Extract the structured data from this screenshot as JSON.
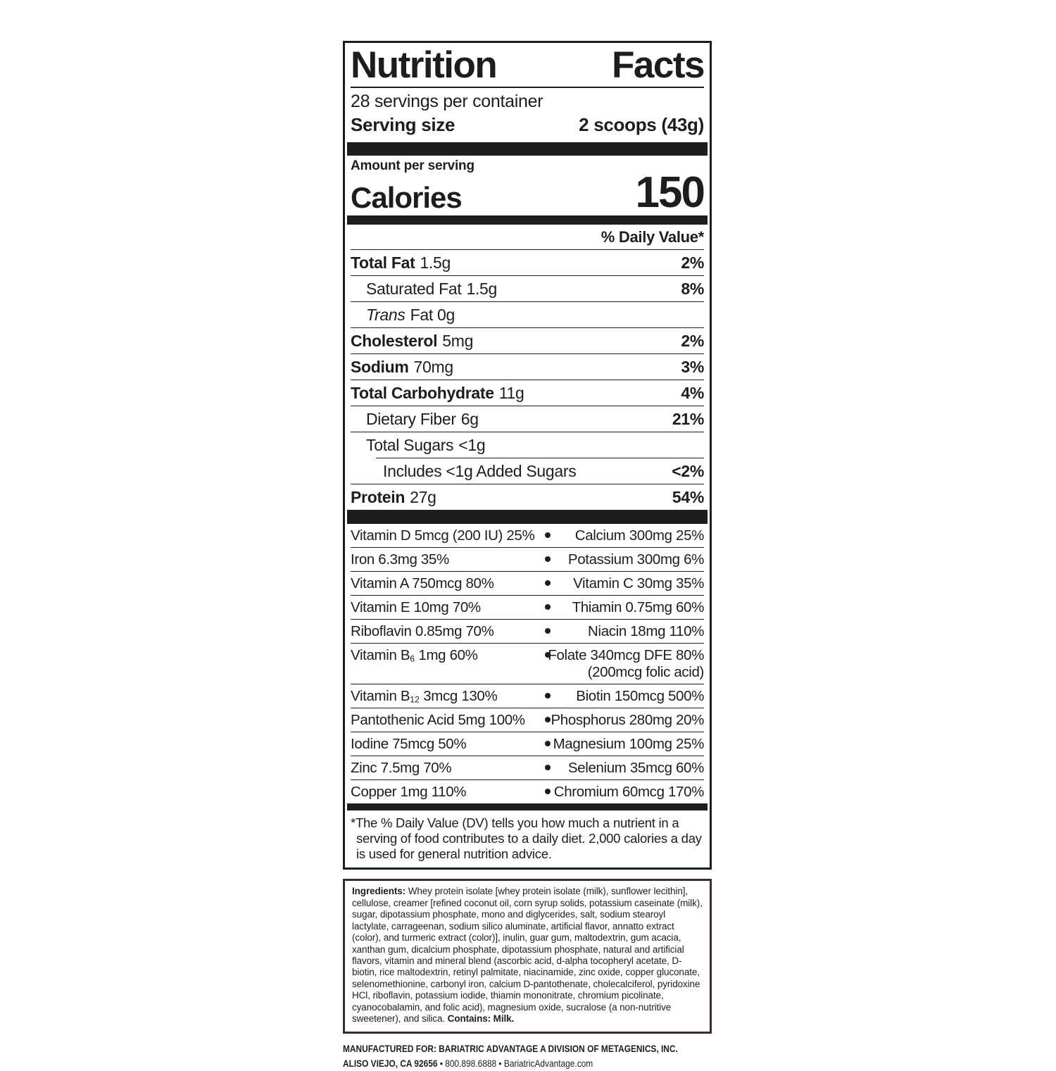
{
  "panel": {
    "title_word1": "Nutrition",
    "title_word2": "Facts",
    "servings_per_container": "28 servings per container",
    "serving_size_label": "Serving size",
    "serving_size_value": "2 scoops (43g)",
    "amount_per_serving": "Amount per serving",
    "calories_label": "Calories",
    "calories_value": "150",
    "daily_value_header": "% Daily Value*",
    "nutrients": [
      {
        "name": "Total Fat",
        "amount": "1.5g",
        "dv": "2%"
      },
      {
        "name": "Saturated Fat",
        "amount": "1.5g",
        "dv": "8%"
      },
      {
        "name": "Trans",
        "amount": "Fat 0g",
        "dv": ""
      },
      {
        "name": "Cholesterol",
        "amount": "5mg",
        "dv": "2%"
      },
      {
        "name": "Sodium",
        "amount": "70mg",
        "dv": "3%"
      },
      {
        "name": "Total Carbohydrate",
        "amount": "11g",
        "dv": "4%"
      },
      {
        "name": "Dietary Fiber",
        "amount": "6g",
        "dv": "21%"
      },
      {
        "name": "Total Sugars",
        "amount": "<1g",
        "dv": ""
      },
      {
        "name": "Includes <1g Added Sugars",
        "amount": "",
        "dv": "<2%"
      },
      {
        "name": "Protein",
        "amount": "27g",
        "dv": "54%"
      }
    ],
    "micronutrients": [
      {
        "left": "Vitamin D 5mcg (200 IU) 25%",
        "right": "Calcium 300mg 25%"
      },
      {
        "left": "Iron 6.3mg 35%",
        "right": "Potassium 300mg 6%"
      },
      {
        "left": "Vitamin A 750mcg 80%",
        "right": "Vitamin C 30mg 35%"
      },
      {
        "left": "Vitamin E 10mg 70%",
        "right": "Thiamin 0.75mg 60%"
      },
      {
        "left": "Riboflavin 0.85mg 70%",
        "right": "Niacin 18mg 110%"
      },
      {
        "left_base": "Vitamin B",
        "left_sub": "6",
        "left_rest": " 1mg 60%",
        "right": "Folate 340mcg DFE 80%",
        "right2": "(200mcg folic acid)"
      },
      {
        "left_base": "Vitamin B",
        "left_sub": "12",
        "left_rest": " 3mcg 130%",
        "right": "Biotin 150mcg 500%"
      },
      {
        "left": "Pantothenic Acid 5mg 100%",
        "right": "Phosphorus 280mg 20%"
      },
      {
        "left": "Iodine 75mcg 50%",
        "right": "Magnesium 100mg 25%"
      },
      {
        "left": "Zinc 7.5mg 70%",
        "right": "Selenium 35mcg 60%"
      },
      {
        "left": "Copper 1mg 110%",
        "right": "Chromium 60mcg 170%"
      }
    ],
    "footnote": "*The % Daily Value (DV) tells you how much a nutrient in a serving of food contributes to a daily diet. 2,000 calories a day is used for general nutrition advice."
  },
  "ingredients": {
    "label": "Ingredients:",
    "text": " Whey protein isolate [whey protein isolate (milk), sunflower lecithin], cellulose, creamer [refined coconut oil, corn syrup solids, potassium caseinate (milk), sugar, dipotassium phosphate, mono and diglycerides, salt, sodium stearoyl lactylate, carrageenan, sodium silico aluminate, artificial flavor, annatto extract (color), and turmeric extract (color)], inulin, guar gum, maltodextrin, gum acacia, xanthan gum, dicalcium phosphate, dipotassium phosphate, natural and artificial flavors, vitamin and mineral blend (ascorbic acid, d-alpha tocopheryl acetate, D-biotin, rice maltodextrin, retinyl palmitate, niacinamide, zinc oxide, copper gluconate, selenomethionine, carbonyl iron, calcium D-pantothenate, cholecalciferol, pyridoxine HCl, riboflavin, potassium iodide, thiamin mononitrate, chromium picolinate, cyanocobalamin, and folic acid), magnesium oxide, sucralose (a non-nutritive sweetener), and silica. ",
    "contains": "Contains: Milk."
  },
  "footer": {
    "line1": "MANUFACTURED FOR: BARIATRIC ADVANTAGE A DIVISION OF METAGENICS, INC.",
    "line2_bold": "ALISO VIEJO, CA 92656",
    "line2_rest": " • 800.898.6888 • BariatricAdvantage.com"
  },
  "colors": {
    "text": "#1d1d1b",
    "panel_border": "#1d1d1b",
    "ingredients_border": "#3e2b30",
    "background": "#ffffff"
  }
}
